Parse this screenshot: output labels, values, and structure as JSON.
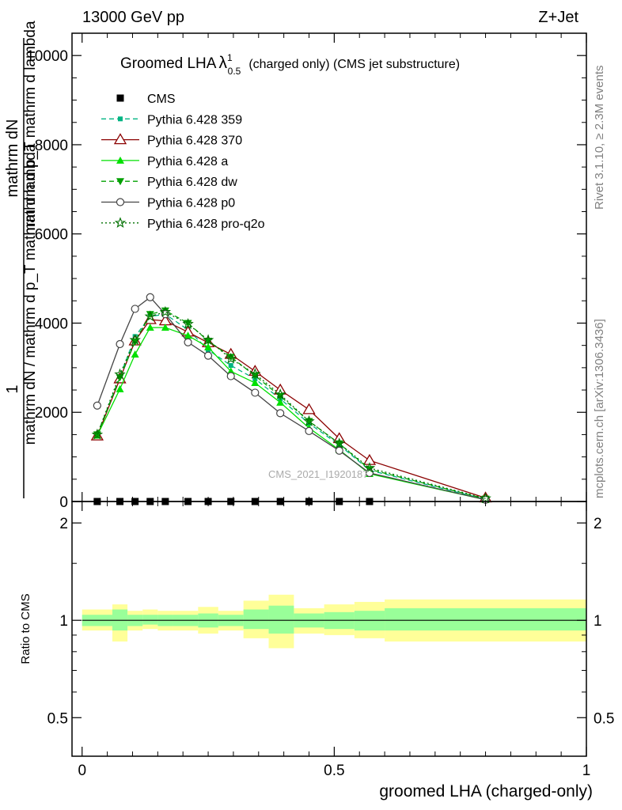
{
  "header": {
    "left": "13000 GeV pp",
    "right": "Z+Jet"
  },
  "chart_data": [
    {
      "type": "line",
      "title_main": "Groomed LHA",
      "title_symbol": "λ",
      "title_sup": "1",
      "title_sub": "0.5",
      "title_rest": "(charged only) (CMS jet substructure)",
      "ylabel_lines": [
        "1",
        "mathrm dN / mathrm d p_T mathrm d lambda",
        "mathrm dN",
        "mathrm d p_T mathrm d lambda"
      ],
      "ylim": [
        0,
        10500
      ],
      "xlim": [
        -0.02,
        1.0
      ],
      "yticks": [
        0,
        2000,
        4000,
        6000,
        8000,
        10000
      ],
      "watermark": "CMS_2021_I1920187",
      "x": [
        0.03,
        0.075,
        0.105,
        0.135,
        0.165,
        0.21,
        0.25,
        0.295,
        0.343,
        0.393,
        0.45,
        0.51,
        0.57,
        0.8
      ],
      "series": [
        {
          "name": "CMS",
          "color": "#000000",
          "marker": "square",
          "line": "none",
          "values": [
            0,
            0,
            0,
            0,
            0,
            0,
            0,
            0,
            0,
            0,
            0,
            0,
            0,
            null
          ]
        },
        {
          "name": "Pythia 6.428 359",
          "color": "#00b482",
          "marker": "square-small",
          "line": "dashed",
          "values": [
            1500,
            2800,
            3700,
            4150,
            4200,
            3850,
            3400,
            3050,
            2750,
            2300,
            1750,
            1270,
            700,
            50
          ]
        },
        {
          "name": "Pythia 6.428 370",
          "color": "#8b0000",
          "marker": "triangle-open",
          "line": "solid",
          "values": [
            1470,
            2750,
            3600,
            4080,
            4050,
            3800,
            3560,
            3300,
            2920,
            2500,
            2060,
            1410,
            920,
            80
          ]
        },
        {
          "name": "Pythia 6.428 a",
          "color": "#00e000",
          "marker": "triangle",
          "line": "solid",
          "values": [
            1480,
            2520,
            3300,
            3900,
            3900,
            3720,
            3460,
            2920,
            2660,
            2220,
            1650,
            1160,
            620,
            40
          ]
        },
        {
          "name": "Pythia 6.428 dw",
          "color": "#00a000",
          "marker": "triangle-down",
          "line": "dashed",
          "values": [
            1500,
            2780,
            3580,
            4200,
            4280,
            4000,
            3600,
            3240,
            2820,
            2360,
            1800,
            1300,
            720,
            60
          ]
        },
        {
          "name": "Pythia 6.428 p0",
          "color": "#444444",
          "marker": "circle-open",
          "line": "solid",
          "values": [
            2150,
            3530,
            4320,
            4580,
            4200,
            3570,
            3270,
            2810,
            2440,
            1980,
            1580,
            1140,
            640,
            40
          ]
        },
        {
          "name": "Pythia 6.428 pro-q2o",
          "color": "#007000",
          "marker": "star",
          "line": "dotted",
          "values": [
            1500,
            2850,
            3620,
            4150,
            4250,
            3980,
            3620,
            3200,
            2860,
            2400,
            1800,
            1300,
            750,
            70
          ]
        }
      ]
    },
    {
      "type": "area",
      "ylabel": "Ratio to CMS",
      "xlabel": "groomed LHA (charged-only)",
      "ylim": [
        0.38,
        2.33
      ],
      "xlim": [
        -0.02,
        1.0
      ],
      "yticks": [
        "0.5",
        "1",
        "2"
      ],
      "ytick_values": [
        0.5,
        1,
        2
      ],
      "xticks": [
        "0",
        "0.5",
        "1"
      ],
      "xtick_values": [
        0,
        0.5,
        1
      ],
      "reference": 1,
      "bin_edges": [
        0.0,
        0.06,
        0.09,
        0.12,
        0.15,
        0.18,
        0.23,
        0.27,
        0.32,
        0.37,
        0.42,
        0.48,
        0.54,
        0.6,
        1.0
      ],
      "green_band": [
        [
          0.96,
          1.04
        ],
        [
          0.93,
          1.08
        ],
        [
          0.96,
          1.04
        ],
        [
          0.97,
          1.04
        ],
        [
          0.96,
          1.04
        ],
        [
          0.96,
          1.04
        ],
        [
          0.95,
          1.05
        ],
        [
          0.96,
          1.04
        ],
        [
          0.94,
          1.08
        ],
        [
          0.91,
          1.11
        ],
        [
          0.95,
          1.05
        ],
        [
          0.94,
          1.06
        ],
        [
          0.93,
          1.07
        ],
        [
          0.93,
          1.09
        ]
      ],
      "yellow_band": [
        [
          0.93,
          1.08
        ],
        [
          0.86,
          1.12
        ],
        [
          0.93,
          1.07
        ],
        [
          0.94,
          1.08
        ],
        [
          0.93,
          1.07
        ],
        [
          0.93,
          1.07
        ],
        [
          0.91,
          1.1
        ],
        [
          0.93,
          1.07
        ],
        [
          0.88,
          1.15
        ],
        [
          0.82,
          1.2
        ],
        [
          0.91,
          1.09
        ],
        [
          0.9,
          1.12
        ],
        [
          0.88,
          1.14
        ],
        [
          0.86,
          1.16
        ]
      ]
    }
  ],
  "side_labels": {
    "rivet": "Rivet 3.1.10, ≥ 2.3M events",
    "mcplots": "mcplots.cern.ch [arXiv:1306.3436]"
  },
  "colors": {
    "green_band": "#99ff99",
    "yellow_band": "#ffff99",
    "axis": "#000000",
    "side_text": "#808080",
    "watermark": "#aaaaaa"
  }
}
